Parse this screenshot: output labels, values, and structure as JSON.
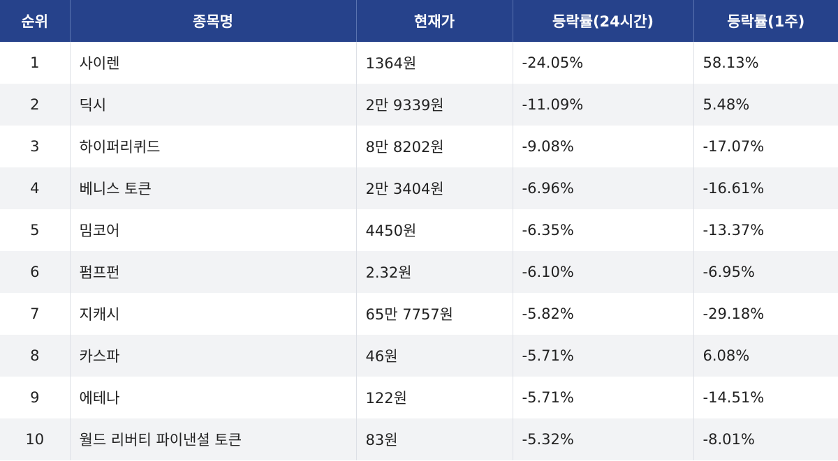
{
  "table": {
    "header": [
      "순위",
      "종목명",
      "현재가",
      "등락률(24시간)",
      "등락률(1주)"
    ],
    "rows": [
      [
        "1",
        "사이렌",
        "1364원",
        "-24.05%",
        "58.13%"
      ],
      [
        "2",
        "딕시",
        "2만 9339원",
        "-11.09%",
        "5.48%"
      ],
      [
        "3",
        "하이퍼리퀴드",
        "8만 8202원",
        "-9.08%",
        "-17.07%"
      ],
      [
        "4",
        "베니스 토큰",
        "2만 3404원",
        "-6.96%",
        "-16.61%"
      ],
      [
        "5",
        "밈코어",
        "4450원",
        "-6.35%",
        "-13.37%"
      ],
      [
        "6",
        "펌프펀",
        "2.32원",
        "-6.10%",
        "-6.95%"
      ],
      [
        "7",
        "지캐시",
        "65만 7757원",
        "-5.82%",
        "-29.18%"
      ],
      [
        "8",
        "카스파",
        "46원",
        "-5.71%",
        "6.08%"
      ],
      [
        "9",
        "에테나",
        "122원",
        "-5.71%",
        "-14.51%"
      ],
      [
        "10",
        "월드 리버티 파이낸셜 토큰",
        "83원",
        "-5.32%",
        "-8.01%"
      ]
    ]
  }
}
